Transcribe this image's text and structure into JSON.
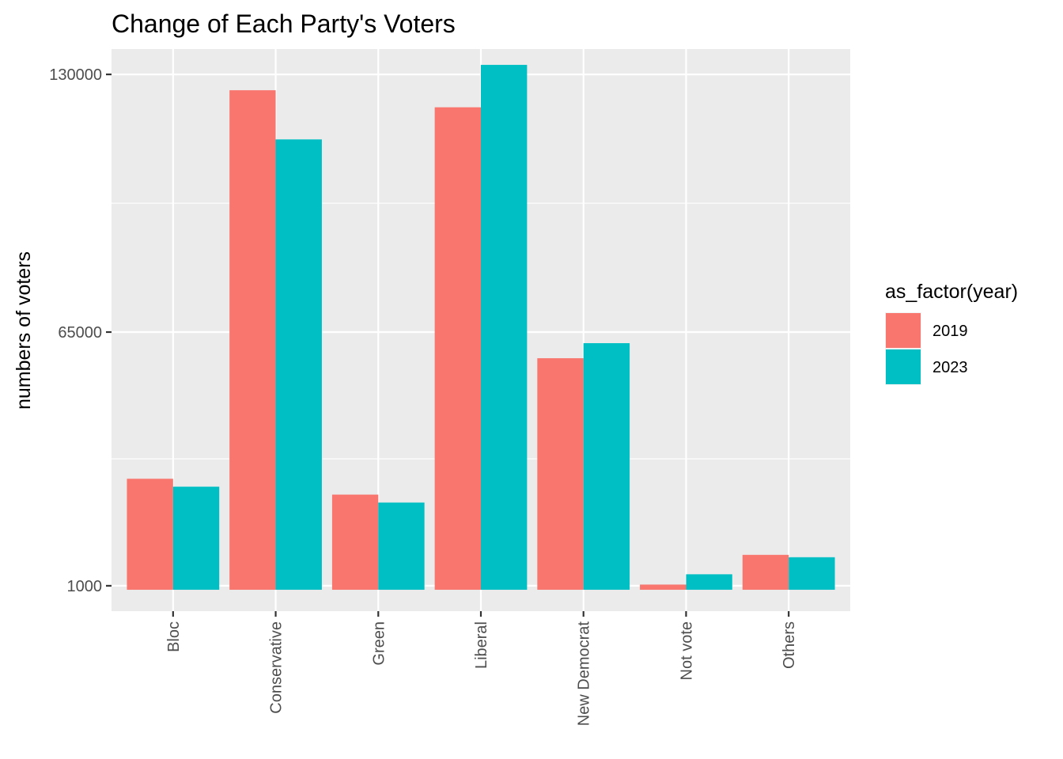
{
  "chart_data": {
    "type": "bar",
    "title": "Change of Each Party's Voters",
    "xlabel": "",
    "ylabel": "numbers of voters",
    "categories": [
      "Bloc",
      "Conservative",
      "Green",
      "Liberal",
      "New Democrat",
      "Not vote",
      "Others"
    ],
    "series": [
      {
        "name": "2019",
        "color": "#F8766D",
        "values": [
          28000,
          126000,
          24000,
          121700,
          58400,
          1300,
          8800
        ]
      },
      {
        "name": "2023",
        "color": "#00BFC4",
        "values": [
          26000,
          113600,
          22000,
          132400,
          62200,
          3900,
          8200
        ]
      }
    ],
    "y_ticks": [
      1000,
      65000,
      130000
    ],
    "y_tick_labels": [
      "1000",
      "65000",
      "130000"
    ],
    "ylim": [
      -5400,
      136400
    ],
    "legend": {
      "title": "as_factor(year)",
      "position": "right"
    },
    "grid": true,
    "panel_background": "#EBEBEB",
    "grid_color": "#FFFFFF"
  }
}
